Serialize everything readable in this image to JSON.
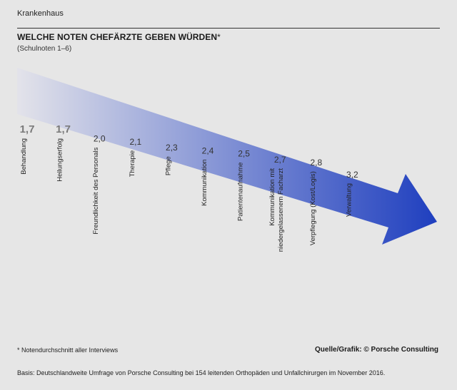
{
  "header": {
    "kicker": "Krankenhaus",
    "title": "WELCHE NOTEN CHEFÄRZTE GEBEN WÜRDEN",
    "title_marker": "*",
    "subtitle": "(Schulnoten 1–6)"
  },
  "chart_data": {
    "type": "bar",
    "categories": [
      "Behandlung",
      "Heilungserfolg",
      "Freundlichkeit des Personals",
      "Therapie",
      "Pflege",
      "Kommunikation",
      "Patientenaufnahme",
      "Kommunikation mit niedergelassenem Facharzt",
      "Verpflegung (Kost/Logis)",
      "Verwaltung"
    ],
    "category_lines": [
      [
        "Behandlung"
      ],
      [
        "Heilungserfolg"
      ],
      [
        "Freundlichkeit des Personals"
      ],
      [
        "Therapie"
      ],
      [
        "Pflege"
      ],
      [
        "Kommunikation"
      ],
      [
        "Patientenaufnahme"
      ],
      [
        "Kommunikation mit",
        "niedergelassenem Facharzt"
      ],
      [
        "Verpflegung (Kost/Logis)"
      ],
      [
        "Verwaltung"
      ]
    ],
    "values": [
      1.7,
      1.7,
      2.0,
      2.1,
      2.3,
      2.4,
      2.5,
      2.7,
      2.8,
      3.2
    ],
    "value_labels": [
      "1,7",
      "1,7",
      "2,0",
      "2,1",
      "2,3",
      "2,4",
      "2,5",
      "2,7",
      "2,8",
      "3,2"
    ],
    "highlighted": [
      true,
      true,
      false,
      false,
      false,
      false,
      false,
      false,
      false,
      false
    ],
    "arrow_color_start": "#e3e3ea",
    "arrow_color_end": "#1f3fbf",
    "highlight_color": "#7a7a7a",
    "label_color": "#333333"
  },
  "footer": {
    "footnote": "* Notendurchschnitt aller Interviews",
    "source": "Quelle/Grafik: © Porsche Consulting",
    "basis": "Basis: Deutschlandweite Umfrage von Porsche Consulting bei 154 leitenden Orthopäden und Unfallchirurgen im November 2016."
  }
}
